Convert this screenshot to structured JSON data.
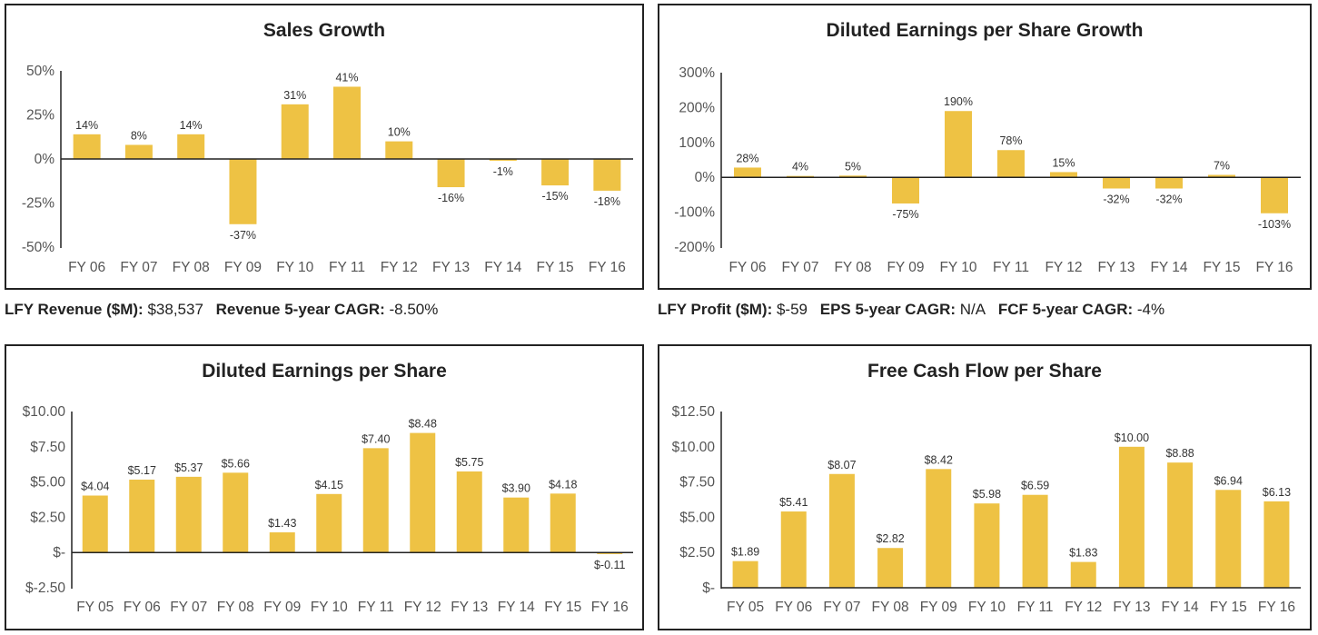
{
  "colors": {
    "bar": "#EEC244",
    "axis": "#222222",
    "text": "#555555"
  },
  "chart_data": [
    {
      "type": "bar",
      "title": "Sales Growth",
      "categories": [
        "FY 06",
        "FY 07",
        "FY 08",
        "FY 09",
        "FY 10",
        "FY 11",
        "FY 12",
        "FY 13",
        "FY 14",
        "FY 15",
        "FY 16"
      ],
      "values": [
        14,
        8,
        14,
        -37,
        31,
        41,
        10,
        -16,
        -1,
        -15,
        -18
      ],
      "value_labels": [
        "14%",
        "8%",
        "14%",
        "-37%",
        "31%",
        "41%",
        "10%",
        "-16%",
        "-1%",
        "-15%",
        "-18%"
      ],
      "yticks": [
        50,
        25,
        0,
        -25,
        -50
      ],
      "ytick_labels": [
        "50%",
        "25%",
        "0%",
        "-25%",
        "-50%"
      ],
      "ylim": [
        -50,
        50
      ],
      "xlabel": "",
      "ylabel": ""
    },
    {
      "type": "bar",
      "title": "Diluted Earnings per Share Growth",
      "categories": [
        "FY 06",
        "FY 07",
        "FY 08",
        "FY 09",
        "FY 10",
        "FY 11",
        "FY 12",
        "FY 13",
        "FY 14",
        "FY 15",
        "FY 16"
      ],
      "values": [
        28,
        4,
        5,
        -75,
        190,
        78,
        15,
        -32,
        -32,
        7,
        -103
      ],
      "value_labels": [
        "28%",
        "4%",
        "5%",
        "-75%",
        "190%",
        "78%",
        "15%",
        "-32%",
        "-32%",
        "7%",
        "-103%"
      ],
      "yticks": [
        300,
        200,
        100,
        0,
        -100,
        -200
      ],
      "ytick_labels": [
        "300%",
        "200%",
        "100%",
        "0%",
        "-100%",
        "-200%"
      ],
      "ylim": [
        -200,
        300
      ],
      "xlabel": "",
      "ylabel": ""
    },
    {
      "type": "bar",
      "title": "Diluted Earnings per Share",
      "categories": [
        "FY 05",
        "FY 06",
        "FY 07",
        "FY 08",
        "FY 09",
        "FY 10",
        "FY 11",
        "FY 12",
        "FY 13",
        "FY 14",
        "FY 15",
        "FY 16"
      ],
      "values": [
        4.04,
        5.17,
        5.37,
        5.66,
        1.43,
        4.15,
        7.4,
        8.48,
        5.75,
        3.9,
        4.18,
        -0.11
      ],
      "value_labels": [
        "$4.04",
        "$5.17",
        "$5.37",
        "$5.66",
        "$1.43",
        "$4.15",
        "$7.40",
        "$8.48",
        "$5.75",
        "$3.90",
        "$4.18",
        "$-0.11"
      ],
      "yticks": [
        10,
        7.5,
        5,
        2.5,
        0,
        -2.5
      ],
      "ytick_labels": [
        "$10.00",
        "$7.50",
        "$5.00",
        "$2.50",
        "$-",
        "$-2.50"
      ],
      "ylim": [
        -2.5,
        10
      ],
      "xlabel": "",
      "ylabel": ""
    },
    {
      "type": "bar",
      "title": "Free Cash Flow per Share",
      "categories": [
        "FY 05",
        "FY 06",
        "FY 07",
        "FY 08",
        "FY 09",
        "FY 10",
        "FY 11",
        "FY 12",
        "FY 13",
        "FY 14",
        "FY 15",
        "FY 16"
      ],
      "values": [
        1.89,
        5.41,
        8.07,
        2.82,
        8.42,
        5.98,
        6.59,
        1.83,
        10.0,
        8.88,
        6.94,
        6.13
      ],
      "value_labels": [
        "$1.89",
        "$5.41",
        "$8.07",
        "$2.82",
        "$8.42",
        "$5.98",
        "$6.59",
        "$1.83",
        "$10.00",
        "$8.88",
        "$6.94",
        "$6.13"
      ],
      "yticks": [
        12.5,
        10,
        7.5,
        5,
        2.5,
        0
      ],
      "ytick_labels": [
        "$12.50",
        "$10.00",
        "$7.50",
        "$5.00",
        "$2.50",
        "$-"
      ],
      "ylim": [
        0,
        12.5
      ],
      "xlabel": "",
      "ylabel": ""
    }
  ],
  "summaries": {
    "left": [
      {
        "label": "LFY Revenue ($M):",
        "value": "$38,537"
      },
      {
        "label": "Revenue 5-year CAGR:",
        "value": "-8.50%"
      }
    ],
    "right": [
      {
        "label": "LFY Profit ($M):",
        "value": "$-59"
      },
      {
        "label": "EPS 5-year CAGR:",
        "value": "N/A"
      },
      {
        "label": "FCF 5-year CAGR:",
        "value": "-4%"
      }
    ]
  }
}
